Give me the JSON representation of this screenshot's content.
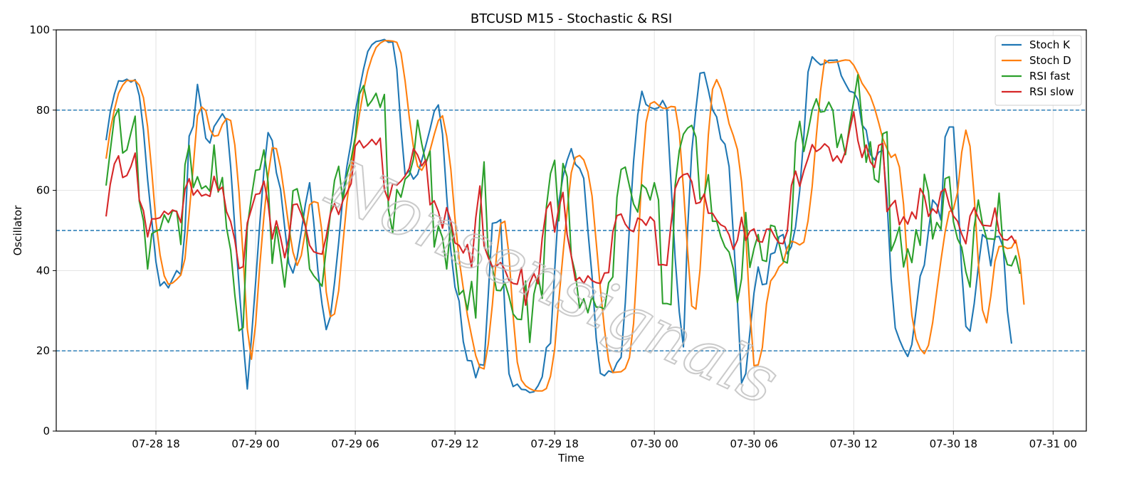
{
  "chart_data": {
    "type": "line",
    "title": "BTCUSD M15 - Stochastic & RSI",
    "xlabel": "Time",
    "ylabel": "Oscillator",
    "ylim": [
      0,
      100
    ],
    "yticks": [
      0,
      20,
      40,
      60,
      80,
      100
    ],
    "xlim": [
      "2024-07-28 12:00",
      "2024-07-31 02:00"
    ],
    "xticks": [
      {
        "value": "2024-07-28 18:00",
        "label": "07-28 18"
      },
      {
        "value": "2024-07-29 00:00",
        "label": "07-29 00"
      },
      {
        "value": "2024-07-29 06:00",
        "label": "07-29 06"
      },
      {
        "value": "2024-07-29 12:00",
        "label": "07-29 12"
      },
      {
        "value": "2024-07-29 18:00",
        "label": "07-29 18"
      },
      {
        "value": "2024-07-30 00:00",
        "label": "07-30 00"
      },
      {
        "value": "2024-07-30 06:00",
        "label": "07-30 06"
      },
      {
        "value": "2024-07-30 12:00",
        "label": "07-30 12"
      },
      {
        "value": "2024-07-30 18:00",
        "label": "07-30 18"
      },
      {
        "value": "2024-07-31 00:00",
        "label": "07-31 00"
      }
    ],
    "reference_lines": [
      80,
      50,
      20
    ],
    "reference_color": "#1f77b4",
    "grid": true,
    "legend_position": "top-right",
    "watermark": "Nonsensignals",
    "x_start": "2024-07-28 15:00",
    "x_step_minutes": 15,
    "series": [
      {
        "name": "Stoch K",
        "color": "#1f77b4",
        "values": [
          72.5,
          79.5,
          84.0,
          87.3,
          87.2,
          87.7,
          87.0,
          87.6,
          83.6,
          75.0,
          62.7,
          52.5,
          42.2,
          36.2,
          37.2,
          35.7,
          37.9,
          40.0,
          39.0,
          50.0,
          73.5,
          76.0,
          86.4,
          80.0,
          73.0,
          71.8,
          75.9,
          77.5,
          79.1,
          77.4,
          65.8,
          50.6,
          36.4,
          22.5,
          10.5,
          23.3,
          37.0,
          51.6,
          64.8,
          74.4,
          72.4,
          64.4,
          60.3,
          50.8,
          41.8,
          39.4,
          43.3,
          49.7,
          56.6,
          61.9,
          52.0,
          40.0,
          31.6,
          25.3,
          28.5,
          37.0,
          47.0,
          58.4,
          66.1,
          72.0,
          79.6,
          85.1,
          90.3,
          94.6,
          96.3,
          97.1,
          97.3,
          97.6,
          96.9,
          97.0,
          90.2,
          75.5,
          63.8,
          64.9,
          62.8,
          64.0,
          67.5,
          71.3,
          75.3,
          79.7,
          81.3,
          74.0,
          58.6,
          45.0,
          35.9,
          32.4,
          22.3,
          17.6,
          17.5,
          13.3,
          16.6,
          16.4,
          33.7,
          51.8,
          52.0,
          52.7,
          30.0,
          14.3,
          11.1,
          11.7,
          10.4,
          10.3,
          9.6,
          9.8,
          11.3,
          13.5,
          20.8,
          21.9,
          40.0,
          57.0,
          63.4,
          67.5,
          70.4,
          66.5,
          65.5,
          63.0,
          50.0,
          38.6,
          23.2,
          14.4,
          13.8,
          15.0,
          14.6,
          17.0,
          18.4,
          31.9,
          50.9,
          67.2,
          78.8,
          84.7,
          81.4,
          80.7,
          80.3,
          80.6,
          82.4,
          80.4,
          62.1,
          43.2,
          29.7,
          21.0,
          50.0,
          69.7,
          80.2,
          89.2,
          89.4,
          85.0,
          80.1,
          78.3,
          72.8,
          71.5,
          65.9,
          49.2,
          32.4,
          12.0,
          14.3,
          24.5,
          34.5,
          40.9,
          36.5,
          36.7,
          44.1,
          44.5,
          48.4,
          49.0,
          44.2,
          46.0,
          50.9,
          60.0,
          73.6,
          89.5,
          93.3,
          92.2,
          91.3,
          91.6,
          92.4,
          92.4,
          92.5,
          88.6,
          86.6,
          84.7,
          84.4,
          82.6,
          76.3,
          75.0,
          69.0,
          67.6,
          69.5,
          70.0,
          58.0,
          38.0,
          25.7,
          22.8,
          20.4,
          18.6,
          21.6,
          30.0,
          38.6,
          41.4,
          49.9,
          57.6,
          56.4,
          52.6,
          73.3,
          75.8,
          75.8,
          60.0,
          40.0,
          26.1,
          24.9,
          31.7,
          41.0,
          49.0,
          48.0,
          41.2,
          48.4,
          48.5,
          45.8,
          29.9,
          21.8
        ]
      },
      {
        "name": "Stoch D",
        "color": "#ff7f0e",
        "values": [
          67.9,
          75.0,
          80.1,
          84.2,
          86.2,
          87.4,
          87.3,
          87.4,
          86.2,
          83.1,
          75.9,
          64.7,
          52.2,
          43.9,
          38.7,
          36.6,
          36.9,
          37.8,
          38.9,
          43.0,
          54.2,
          66.1,
          78.6,
          80.8,
          79.9,
          75.2,
          73.5,
          73.7,
          76.4,
          77.9,
          77.4,
          71.3,
          59.6,
          43.4,
          25.5,
          17.9,
          26.6,
          41.2,
          53.5,
          63.6,
          70.6,
          70.4,
          65.7,
          58.5,
          50.9,
          44.6,
          41.3,
          43.8,
          49.9,
          56.4,
          57.2,
          56.9,
          49.5,
          34.7,
          28.5,
          29.2,
          35.0,
          46.5,
          57.2,
          65.5,
          72.6,
          79.0,
          85.0,
          89.8,
          93.1,
          95.6,
          96.7,
          97.3,
          97.3,
          97.2,
          96.9,
          94.2,
          87.2,
          78.2,
          70.8,
          66.0,
          65.0,
          66.9,
          70.0,
          73.9,
          77.4,
          78.6,
          73.5,
          65.3,
          53.0,
          42.8,
          35.6,
          28.9,
          23.7,
          18.8,
          15.9,
          15.5,
          21.6,
          31.5,
          43.7,
          51.7,
          52.3,
          43.9,
          28.7,
          17.2,
          12.7,
          11.3,
          10.6,
          10.1,
          10.0,
          10.0,
          10.6,
          13.7,
          20.4,
          32.6,
          44.0,
          54.9,
          64.4,
          68.2,
          68.7,
          67.6,
          64.6,
          58.6,
          47.1,
          35.6,
          25.3,
          17.5,
          14.6,
          14.7,
          14.8,
          15.6,
          18.3,
          26.8,
          44.2,
          64.1,
          76.9,
          81.6,
          82.1,
          81.2,
          80.5,
          80.4,
          80.9,
          80.8,
          74.5,
          60.5,
          45.0,
          31.2,
          30.4,
          40.2,
          56.7,
          73.8,
          85.2,
          87.6,
          85.3,
          81.4,
          76.6,
          73.7,
          70.2,
          62.1,
          49.1,
          30.1,
          16.3,
          16.5,
          20.8,
          31.7,
          37.4,
          38.8,
          40.9,
          41.9,
          45.7,
          47.3,
          47.0,
          46.4,
          47.1,
          52.4,
          61.0,
          73.6,
          84.7,
          92.5,
          91.8,
          91.9,
          92.0,
          92.3,
          92.5,
          92.4,
          91.2,
          89.2,
          86.7,
          85.2,
          83.5,
          80.6,
          76.9,
          72.9,
          70.4,
          68.2,
          69.0,
          65.8,
          56.5,
          40.6,
          28.8,
          23.0,
          20.5,
          19.3,
          21.4,
          27.0,
          34.9,
          42.6,
          49.6,
          54.7,
          55.3,
          59.5,
          69.5,
          75.0,
          71.0,
          58.6,
          42.0,
          30.2,
          27.0,
          33.6,
          42.3,
          46.0,
          46.1,
          45.5,
          45.7,
          47.6,
          42.7,
          31.5
        ]
      },
      {
        "name": "RSI fast",
        "color": "#2ca02c",
        "values": [
          61.2,
          69.8,
          78.2,
          80.3,
          69.3,
          70.1,
          74.4,
          78.5,
          57.3,
          52.4,
          40.4,
          49.2,
          49.8,
          50.3,
          53.9,
          52.0,
          55.0,
          54.8,
          46.5,
          66.4,
          71.2,
          60.7,
          63.4,
          60.4,
          61.1,
          59.8,
          71.3,
          59.6,
          63.2,
          50.7,
          45.1,
          33.9,
          25.0,
          25.8,
          50.9,
          58.4,
          65.0,
          65.2,
          70.1,
          62.0,
          41.8,
          50.9,
          43.8,
          35.9,
          45.9,
          59.9,
          60.4,
          55.7,
          51.2,
          40.4,
          38.7,
          37.5,
          36.1,
          45.5,
          54.1,
          62.5,
          66.0,
          57.4,
          63.9,
          67.8,
          73.4,
          84.0,
          86.1,
          81.0,
          82.4,
          84.2,
          80.7,
          83.9,
          55.1,
          49.5,
          60.2,
          58.3,
          62.8,
          63.8,
          67.8,
          77.5,
          71.6,
          66.8,
          69.8,
          45.9,
          51.1,
          48.2,
          40.4,
          51.8,
          43.3,
          34.0,
          35.1,
          30.2,
          37.3,
          28.2,
          53.8,
          67.1,
          44.2,
          40.7,
          35.1,
          35.0,
          37.0,
          33.6,
          29.2,
          27.9,
          27.8,
          37.4,
          22.1,
          34.1,
          38.7,
          33.1,
          55.8,
          64.2,
          67.5,
          52.4,
          66.7,
          63.4,
          43.6,
          39.3,
          30.7,
          33.0,
          29.5,
          33.6,
          30.9,
          30.9,
          30.4,
          37.0,
          38.4,
          58.3,
          65.2,
          65.8,
          61.1,
          56.6,
          54.6,
          61.4,
          60.5,
          57.6,
          61.9,
          57.6,
          31.8,
          31.8,
          31.5,
          61.2,
          69.9,
          74.0,
          75.5,
          76.2,
          73.3,
          57.8,
          58.7,
          63.9,
          52.3,
          52.3,
          48.5,
          45.9,
          44.6,
          40.5,
          32.1,
          38.0,
          54.5,
          40.8,
          45.5,
          49.0,
          42.6,
          42.3,
          51.3,
          51.0,
          46.8,
          42.4,
          41.9,
          50.0,
          71.9,
          77.2,
          69.7,
          74.6,
          80.0,
          82.8,
          79.5,
          79.7,
          82.0,
          79.9,
          70.7,
          74.0,
          68.9,
          76.2,
          82.2,
          88.8,
          77.2,
          67.0,
          72.1,
          62.8,
          62.0,
          74.1,
          74.6,
          44.9,
          47.5,
          50.9,
          40.9,
          45.4,
          42.0,
          50.2,
          46.3,
          64.0,
          59.6,
          47.9,
          52.0,
          50.3,
          62.9,
          63.4,
          52.2,
          47.9,
          45.8,
          39.7,
          35.9,
          50.8,
          57.6,
          51.7,
          48.0,
          47.9,
          47.8,
          59.3,
          45.2,
          41.5,
          41.2,
          43.7,
          39.2
        ]
      },
      {
        "name": "RSI slow",
        "color": "#d62728",
        "values": [
          53.5,
          61.5,
          66.6,
          68.6,
          63.2,
          63.7,
          66.0,
          69.3,
          57.6,
          54.9,
          48.4,
          52.9,
          52.9,
          53.2,
          54.8,
          54.0,
          55.1,
          54.7,
          52.0,
          60.3,
          62.9,
          58.8,
          60.1,
          58.6,
          59.0,
          58.5,
          63.5,
          59.9,
          60.8,
          54.7,
          52.2,
          47.6,
          40.5,
          41.0,
          51.9,
          55.4,
          59.0,
          59.2,
          62.3,
          56.8,
          47.9,
          52.4,
          48.3,
          43.2,
          48.1,
          56.4,
          56.6,
          54.1,
          51.0,
          46.3,
          44.7,
          44.3,
          44.1,
          48.5,
          54.2,
          56.7,
          54.0,
          57.4,
          59.5,
          61.7,
          71.0,
          72.4,
          70.6,
          71.5,
          72.7,
          71.4,
          73.0,
          60.2,
          57.5,
          61.6,
          61.3,
          62.3,
          63.6,
          65.5,
          70.4,
          68.8,
          66.1,
          67.6,
          56.4,
          57.4,
          54.7,
          50.6,
          55.7,
          52.3,
          46.9,
          46.3,
          44.4,
          46.5,
          40.8,
          53.1,
          61.1,
          46.2,
          43.3,
          41.0,
          41.2,
          42.0,
          40.2,
          37.6,
          36.8,
          36.6,
          40.7,
          31.4,
          36.9,
          39.3,
          36.7,
          48.1,
          55.3,
          57.1,
          49.6,
          55.7,
          59.5,
          49.0,
          43.7,
          37.5,
          38.3,
          36.8,
          38.7,
          37.5,
          37.0,
          36.8,
          39.4,
          39.5,
          49.6,
          53.7,
          54.1,
          51.6,
          50.2,
          49.7,
          53.1,
          52.6,
          51.3,
          53.4,
          52.3,
          41.4,
          41.5,
          41.3,
          51.5,
          60.4,
          63.0,
          63.9,
          64.2,
          62.2,
          56.7,
          57.0,
          59.1,
          54.3,
          54.3,
          52.6,
          51.4,
          50.9,
          48.9,
          45.3,
          47.6,
          53.3,
          47.5,
          49.8,
          50.4,
          47.3,
          47.1,
          50.3,
          50.4,
          48.4,
          46.9,
          46.7,
          49.8,
          61.2,
          64.8,
          61.0,
          64.9,
          68.0,
          71.4,
          69.7,
          70.4,
          71.6,
          70.7,
          67.3,
          68.6,
          66.9,
          69.7,
          74.9,
          79.6,
          72.4,
          68.2,
          71.3,
          67.1,
          65.7,
          71.2,
          71.7,
          54.7,
          56.3,
          57.5,
          51.4,
          53.4,
          51.6,
          54.6,
          52.9,
          60.5,
          58.6,
          53.5,
          55.4,
          54.3,
          59.6,
          60.4,
          56.4,
          53.6,
          52.3,
          49.1,
          46.7,
          53.6,
          55.7,
          53.1,
          51.3,
          51.2,
          51.1,
          55.6,
          49.6,
          47.8,
          47.6,
          48.6,
          46.8
        ]
      }
    ]
  }
}
